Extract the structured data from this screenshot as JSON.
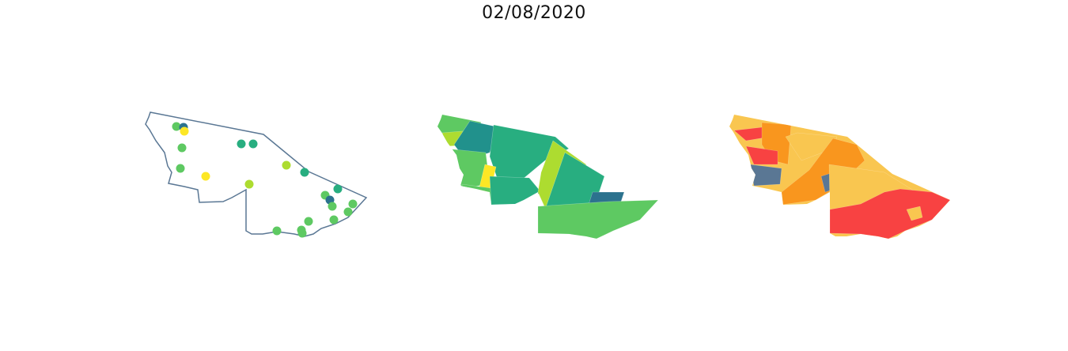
{
  "title": "02/08/2020",
  "colors": {
    "outline": "#5a7794",
    "viridis": [
      "#fde725",
      "#addc30",
      "#5ec962",
      "#28ae80",
      "#21918c",
      "#2c728e",
      "#3b528b"
    ],
    "risk": [
      "#f9c650",
      "#f9961e",
      "#f84242",
      "#5a7794"
    ]
  },
  "point_map": {
    "points": [
      {
        "id": "p1",
        "level": 2
      },
      {
        "id": "p2",
        "level": 5
      },
      {
        "id": "p3",
        "level": 0
      },
      {
        "id": "p4",
        "level": 2
      },
      {
        "id": "p5",
        "level": 3
      },
      {
        "id": "p6",
        "level": 3
      },
      {
        "id": "p7",
        "level": 2
      },
      {
        "id": "p8",
        "level": 1
      },
      {
        "id": "p9",
        "level": 0
      },
      {
        "id": "p10",
        "level": 3
      },
      {
        "id": "p11",
        "level": 1
      },
      {
        "id": "p12",
        "level": 3
      },
      {
        "id": "p13",
        "level": 2
      },
      {
        "id": "p14",
        "level": 5
      },
      {
        "id": "p15",
        "level": 2
      },
      {
        "id": "p16",
        "level": 2
      },
      {
        "id": "p17",
        "level": 2
      },
      {
        "id": "p18",
        "level": 2
      },
      {
        "id": "p19",
        "level": 2
      },
      {
        "id": "p20",
        "level": 2
      },
      {
        "id": "p21",
        "level": 2
      },
      {
        "id": "p22",
        "level": 2
      }
    ]
  },
  "choropleth_viridis": {
    "regions": [
      {
        "id": "r1",
        "level": 2
      },
      {
        "id": "r2",
        "level": 1
      },
      {
        "id": "r3",
        "level": 4
      },
      {
        "id": "r4",
        "level": 3
      },
      {
        "id": "r5",
        "level": 2
      },
      {
        "id": "r6",
        "level": 0
      },
      {
        "id": "r7",
        "level": 2
      },
      {
        "id": "r8",
        "level": 3
      },
      {
        "id": "r9",
        "level": 1
      },
      {
        "id": "r10",
        "level": 3
      },
      {
        "id": "r11",
        "level": 5
      },
      {
        "id": "r12",
        "level": 2
      }
    ]
  },
  "choropleth_risk": {
    "regions": [
      {
        "id": "k1",
        "level": 0
      },
      {
        "id": "k2",
        "level": 2
      },
      {
        "id": "k3",
        "level": 1
      },
      {
        "id": "k4",
        "level": 2
      },
      {
        "id": "k5",
        "level": 3
      },
      {
        "id": "k6",
        "level": 0
      },
      {
        "id": "k7",
        "level": 1
      },
      {
        "id": "k8",
        "level": 3
      },
      {
        "id": "k9",
        "level": 0
      },
      {
        "id": "k10",
        "level": 2
      },
      {
        "id": "k11",
        "level": 0
      }
    ]
  }
}
